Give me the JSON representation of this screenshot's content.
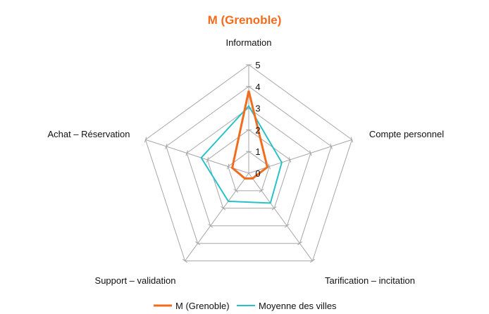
{
  "chart_data": {
    "type": "radar",
    "title": "M (Grenoble)",
    "categories": [
      "Information",
      "Compte personnel",
      "Tarification – incitation",
      "Support – validation",
      "Achat – Réservation"
    ],
    "rlim": [
      0,
      5
    ],
    "ticks": [
      "0",
      "1",
      "2",
      "3",
      "4",
      "5"
    ],
    "grid": true,
    "legend_position": "bottom",
    "series": [
      {
        "name": "M (Grenoble)",
        "values": [
          3.8,
          0.9,
          0.3,
          0.3,
          0.8
        ],
        "color": "#f26c1e"
      },
      {
        "name": "Moyenne des villes",
        "values": [
          3.1,
          1.6,
          1.7,
          1.6,
          2.3
        ],
        "color": "#29c1c9"
      }
    ],
    "colors": {
      "title": "#f26c1e",
      "grid": "#a6a6a6"
    }
  }
}
